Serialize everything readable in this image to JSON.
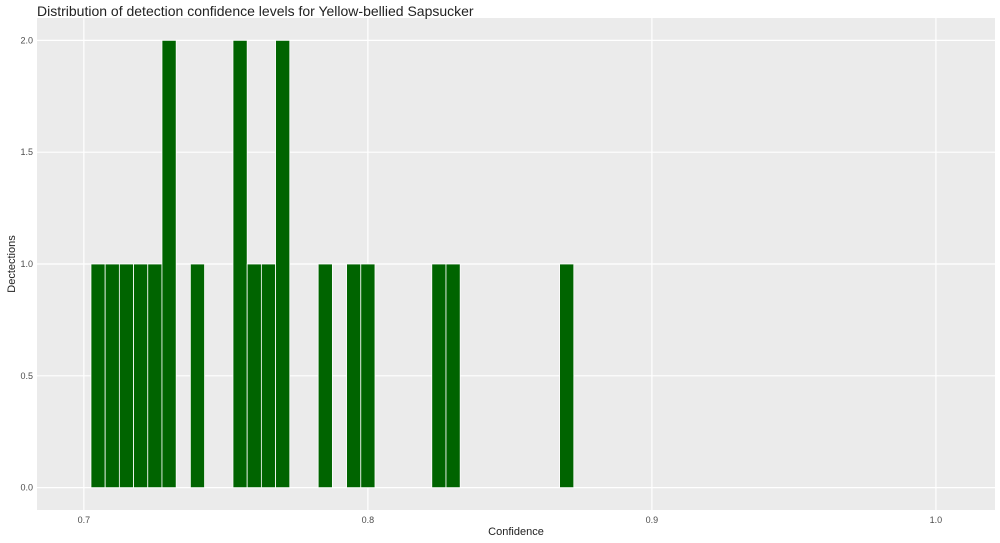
{
  "chart_data": {
    "type": "histogram",
    "title": "Distribution of detection confidence levels for Yellow-bellied Sapsucker",
    "x_label": "Confidence",
    "y_label": "Dectections",
    "bins": [
      0.7025,
      0.7075,
      0.7125,
      0.7175,
      0.7225,
      0.7275,
      0.7325,
      0.7375,
      0.7425,
      0.7475,
      0.7525,
      0.7575,
      0.7625,
      0.7675,
      0.7725,
      0.7775,
      0.7825,
      0.7875,
      0.7925,
      0.7975,
      0.8025,
      0.8075,
      0.8125,
      0.8175,
      0.8225,
      0.8275,
      0.8325,
      0.8375,
      0.8425,
      0.8475,
      0.8525,
      0.8575,
      0.8625,
      0.8675,
      0.8725
    ],
    "values": [
      1,
      1,
      1,
      1,
      1,
      2,
      0,
      1,
      0,
      0,
      2,
      1,
      1,
      2,
      0,
      0,
      1,
      0,
      1,
      1,
      0,
      0,
      0,
      0,
      1,
      1,
      0,
      0,
      0,
      0,
      0,
      0,
      0,
      1
    ],
    "color": "#006400",
    "xlim": [
      0.6835,
      1.0208
    ],
    "ylim": [
      -0.1,
      2.1
    ],
    "xticks": [
      0.7,
      0.8,
      0.9,
      {
        "value": 1,
        "label": "1.0"
      }
    ],
    "yticks": [
      {
        "value": 0,
        "label": "0.0"
      },
      0.5,
      {
        "value": 1,
        "label": "1.0"
      },
      1.5,
      {
        "value": 2,
        "label": "2.0"
      }
    ],
    "grid": true
  }
}
